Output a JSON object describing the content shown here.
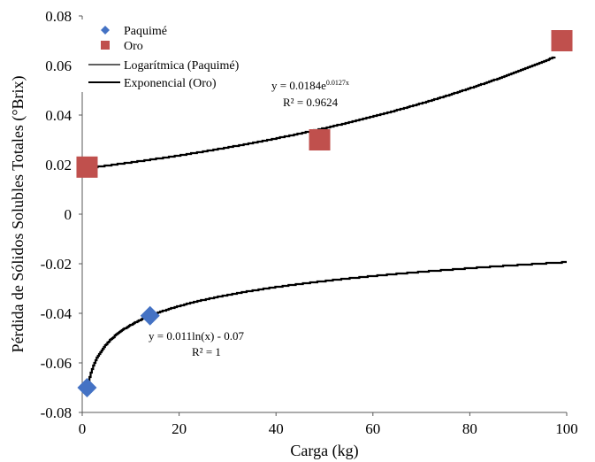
{
  "chart_data": {
    "type": "scatter",
    "xlabel": "Carga (kg)",
    "ylabel": "Pérdida de Sólidos Solubles Totales (°Brix)",
    "xlim": [
      0,
      100
    ],
    "ylim": [
      -0.08,
      0.08
    ],
    "x_ticks": [
      "0",
      "20",
      "40",
      "60",
      "80",
      "100"
    ],
    "y_ticks": [
      "-0.08",
      "-0.06",
      "-0.04",
      "-0.02",
      "0",
      "0.02",
      "0.04",
      "0.06",
      "0.08"
    ],
    "grid": false,
    "legend_position": "top-left",
    "legend": [
      "Paquimé",
      "Oro",
      "Logarítmica (Paquimé)",
      "Exponencial (Oro)"
    ],
    "series": [
      {
        "name": "Paquimé",
        "marker": "diamond",
        "color": "#4472C4",
        "x": [
          1,
          14
        ],
        "y": [
          -0.07,
          -0.041
        ]
      },
      {
        "name": "Oro",
        "marker": "square",
        "color": "#C0504D",
        "x": [
          1,
          49,
          99
        ],
        "y": [
          0.019,
          0.03,
          0.07
        ]
      }
    ],
    "trendlines": [
      {
        "name": "Logarítmica (Paquimé)",
        "kind": "logarithmic",
        "a": 0.011,
        "b": -0.07,
        "x_range": [
          1,
          100
        ],
        "color": "#000000",
        "equation_prefix": "y = 0.011ln(x) - 0.07",
        "r2": "R² = 1"
      },
      {
        "name": "Exponencial (Oro)",
        "kind": "exponential",
        "a": 0.0184,
        "b": 0.0127,
        "x_range": [
          1,
          97.5
        ],
        "color": "#000000",
        "equation_prefix": "y = 0.0184e",
        "equation_exponent": "0.0127x",
        "r2": "R² = 0.9624"
      }
    ]
  }
}
